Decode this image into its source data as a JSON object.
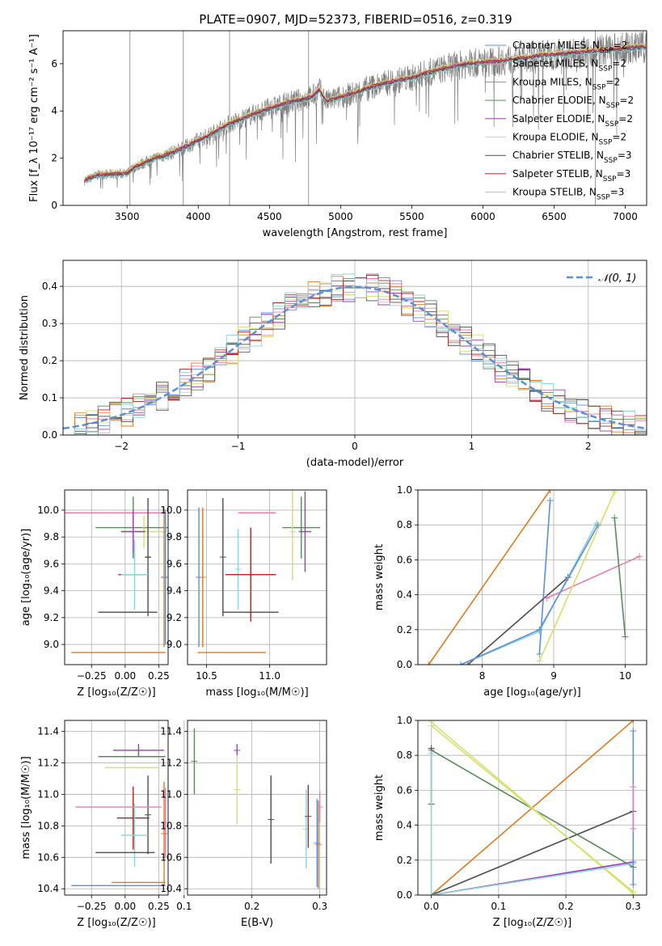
{
  "figure_title": "PLATE=0907, MJD=52373, FIBERID=0516, z=0.319",
  "colors": {
    "chabrier_miles": "#5b8fd9",
    "salpeter_miles": "#e97fa8",
    "kroupa_miles": "#e07a1f",
    "chabrier_elodie": "#5a8a5a",
    "salpeter_elodie": "#9a3fb8",
    "kroupa_elodie": "#d6e06a",
    "chabrier_stelib": "#4d4d4d",
    "salpeter_stelib": "#b22222",
    "kroupa_stelib": "#8dd3da",
    "data_gray": "#808080",
    "normal_curve": "#5b8fd9",
    "grid": "#b0b0b0"
  },
  "chart_data": [
    {
      "id": "spectrum",
      "type": "line",
      "title": "PLATE=0907, MJD=52373, FIBERID=0516, z=0.319",
      "xlabel": "wavelength [Angstrom, rest frame]",
      "ylabel": "Flux [f_λ 10⁻¹⁷ erg cm⁻² s⁻¹ A⁻¹]",
      "xlim": [
        3050,
        7150
      ],
      "ylim": [
        0,
        7.4
      ],
      "xticks": [
        3500,
        4000,
        4500,
        5000,
        5500,
        6000,
        6500,
        7000
      ],
      "yticks": [
        0,
        2,
        4,
        6
      ],
      "grid": false,
      "legend_position": "top-right",
      "continuum_x": [
        3200,
        3300,
        3500,
        3550,
        3600,
        3700,
        3800,
        3900,
        4000,
        4100,
        4200,
        4300,
        4400,
        4500,
        4600,
        4700,
        4800,
        4850,
        4900,
        5000,
        5100,
        5200,
        5300,
        5400,
        5500,
        5600,
        5700,
        5800,
        5900,
        6000,
        6100,
        6200,
        6300,
        6400,
        6500,
        6600,
        6700,
        6800,
        6900,
        7000,
        7100
      ],
      "continuum_y": [
        1.05,
        1.3,
        1.35,
        1.6,
        1.75,
        2.0,
        2.2,
        2.45,
        2.75,
        3.05,
        3.4,
        3.65,
        3.9,
        4.1,
        4.3,
        4.45,
        4.6,
        4.9,
        4.4,
        4.6,
        4.75,
        5.0,
        5.15,
        5.3,
        5.4,
        5.6,
        5.75,
        5.9,
        6.0,
        6.05,
        6.1,
        6.2,
        6.25,
        6.35,
        6.4,
        6.45,
        6.5,
        6.55,
        6.6,
        6.65,
        6.7
      ],
      "series": [
        {
          "name": "Chabrier MILES, N_SSP=2",
          "color_key": "chabrier_miles",
          "offset": 0.05
        },
        {
          "name": "Salpeter MILES, N_SSP=2",
          "color_key": "salpeter_miles",
          "offset": 0.08
        },
        {
          "name": "Kroupa MILES, N_SSP=2",
          "color_key": "kroupa_miles",
          "offset": 0.02
        },
        {
          "name": "Chabrier ELODIE, N_SSP=2",
          "color_key": "chabrier_elodie",
          "offset": -0.06
        },
        {
          "name": "Salpeter ELODIE, N_SSP=2",
          "color_key": "salpeter_elodie",
          "offset": 0.0
        },
        {
          "name": "Kroupa ELODIE, N_SSP=2",
          "color_key": "kroupa_elodie",
          "offset": 0.12
        },
        {
          "name": "Chabrier STELIB, N_SSP=3",
          "color_key": "chabrier_stelib",
          "offset": -0.04
        },
        {
          "name": "Salpeter STELIB, N_SSP=3",
          "color_key": "salpeter_stelib",
          "offset": 0.03
        },
        {
          "name": "Kroupa STELIB, N_SSP=3",
          "color_key": "kroupa_stelib",
          "offset": -0.1
        }
      ]
    },
    {
      "id": "residuals",
      "type": "line",
      "xlabel": "(data-model)/error",
      "ylabel": "Normed distribution",
      "xlim": [
        -2.5,
        2.5
      ],
      "ylim": [
        0,
        0.47
      ],
      "xticks": [
        -2,
        -1,
        0,
        1,
        2
      ],
      "yticks": [
        0.0,
        0.1,
        0.2,
        0.3,
        0.4
      ],
      "grid": true,
      "legend_position": "top-right",
      "legend_label": "𝒩(0, 1)",
      "bin_width": 0.1,
      "normal_sigma": 1.0
    },
    {
      "id": "age_vs_Z",
      "type": "scatter",
      "xlabel": "Z [log₁₀(Z/Z☉)]",
      "ylabel": "age  [log₁₀(age/yr)]",
      "xlim": [
        -0.45,
        0.32
      ],
      "ylim": [
        8.85,
        10.15
      ],
      "xticks": [
        -0.25,
        0.0,
        0.25
      ],
      "yticks": [
        9.0,
        9.2,
        9.4,
        9.6,
        9.8,
        10.0
      ],
      "points": [
        {
          "color_key": "salpeter_miles",
          "x": -0.08,
          "xerr": 0.38,
          "y": 9.98,
          "yerr": 0.0
        },
        {
          "color_key": "chabrier_elodie",
          "x": 0.06,
          "xerr": 0.28,
          "y": 9.87,
          "yerr": 0.23
        },
        {
          "color_key": "kroupa_elodie",
          "x": 0.14,
          "xerr": 0.17,
          "y": 9.84,
          "yerr": 0.12
        },
        {
          "color_key": "salpeter_elodie",
          "x": 0.06,
          "xerr": 0.09,
          "y": 9.84,
          "yerr": 0.16
        },
        {
          "color_key": "chabrier_stelib",
          "x": 0.17,
          "xerr": 0.02,
          "y": 9.65,
          "yerr": 0.44
        },
        {
          "color_key": "kroupa_miles",
          "x": 0.29,
          "xerr": 0.02,
          "y": 9.5,
          "yerr": 0.52
        },
        {
          "color_key": "salpeter_stelib",
          "x": 0.05,
          "xerr": 0.1,
          "y": 9.52,
          "yerr": 0.0
        },
        {
          "color_key": "kroupa_stelib",
          "x": 0.07,
          "xerr": 0.1,
          "y": 9.52,
          "yerr": 0.26
        },
        {
          "color_key": "chabrier_stelib",
          "x": 0.02,
          "xerr": 0.22,
          "y": 9.24,
          "yerr": 0.0
        },
        {
          "color_key": "kroupa_miles",
          "x": -0.05,
          "xerr": 0.35,
          "y": 8.94,
          "yerr": 0.0
        },
        {
          "color_key": "chabrier_miles",
          "x": 0.3,
          "xerr": 0.0,
          "y": 9.5,
          "yerr": 0.5
        }
      ]
    },
    {
      "id": "age_vs_mass",
      "type": "scatter",
      "xlabel": "mass [log₁₀(M/M☉)]",
      "ylabel": "",
      "xlim": [
        10.35,
        11.45
      ],
      "ylim": [
        8.85,
        10.15
      ],
      "xticks": [
        10.5,
        11.0
      ],
      "yticks": [
        9.0,
        9.2,
        9.4,
        9.6,
        9.8,
        10.0
      ],
      "points": [
        {
          "color_key": "salpeter_miles",
          "x": 10.9,
          "xerr": 0.15,
          "y": 9.98,
          "yerr": 0.0
        },
        {
          "color_key": "chabrier_elodie",
          "x": 11.25,
          "xerr": 0.15,
          "y": 9.87,
          "yerr": 0.23
        },
        {
          "color_key": "kroupa_elodie",
          "x": 11.18,
          "xerr": 0.0,
          "y": 9.84,
          "yerr": 0.36
        },
        {
          "color_key": "salpeter_elodie",
          "x": 11.28,
          "xerr": 0.05,
          "y": 9.84,
          "yerr": 0.3
        },
        {
          "color_key": "chabrier_stelib",
          "x": 10.63,
          "xerr": 0.0,
          "y": 9.65,
          "yerr": 0.44
        },
        {
          "color_key": "kroupa_stelib",
          "x": 10.75,
          "xerr": 0.0,
          "y": 9.56,
          "yerr": 0.3
        },
        {
          "color_key": "salpeter_stelib",
          "x": 10.85,
          "xerr": 0.2,
          "y": 9.52,
          "yerr": 0.35
        },
        {
          "color_key": "kroupa_miles",
          "x": 10.47,
          "xerr": 0.0,
          "y": 9.5,
          "yerr": 0.52
        },
        {
          "color_key": "chabrier_miles",
          "x": 10.44,
          "xerr": 0.0,
          "y": 9.5,
          "yerr": 0.52
        },
        {
          "color_key": "chabrier_stelib",
          "x": 10.85,
          "xerr": 0.22,
          "y": 9.24,
          "yerr": 0.0
        },
        {
          "color_key": "kroupa_miles",
          "x": 10.7,
          "xerr": 0.27,
          "y": 8.94,
          "yerr": 0.0
        }
      ]
    },
    {
      "id": "mass_weight_vs_age",
      "type": "line",
      "xlabel": "age  [log₁₀(age/yr)]",
      "ylabel": "mass weight",
      "xlim": [
        7.1,
        10.3
      ],
      "ylim": [
        0,
        1.0
      ],
      "xticks": [
        8,
        9,
        10
      ],
      "yticks": [
        0.0,
        0.2,
        0.4,
        0.6,
        0.8,
        1.0
      ],
      "grid": true,
      "series": [
        {
          "color_key": "kroupa_miles",
          "x": [
            7.25,
            8.95
          ],
          "y": [
            0.0,
            1.0
          ]
        },
        {
          "color_key": "chabrier_miles",
          "x": [
            8.8,
            8.95
          ],
          "y": [
            0.06,
            0.94
          ]
        },
        {
          "color_key": "chabrier_stelib",
          "x": [
            7.8,
            9.2
          ],
          "y": [
            0.0,
            0.5
          ]
        },
        {
          "color_key": "salpeter_miles",
          "x": [
            8.9,
            10.2
          ],
          "y": [
            0.38,
            0.62
          ]
        },
        {
          "color_key": "kroupa_elodie",
          "x": [
            8.8,
            9.85
          ],
          "y": [
            0.02,
            0.99
          ]
        },
        {
          "color_key": "chabrier_elodie",
          "x": [
            9.85,
            10.0
          ],
          "y": [
            0.84,
            0.16
          ]
        },
        {
          "color_key": "kroupa_stelib",
          "x": [
            7.7,
            8.8,
            9.6
          ],
          "y": [
            0.0,
            0.19,
            0.81
          ]
        },
        {
          "color_key": "chabrier_miles",
          "x": [
            7.7,
            8.8,
            9.62
          ],
          "y": [
            0.0,
            0.2,
            0.8
          ]
        }
      ]
    },
    {
      "id": "mass_vs_Z",
      "type": "scatter",
      "xlabel": "Z [log₁₀(Z/Z☉)]",
      "ylabel": "mass [log₁₀(M/M☉)]",
      "xlim": [
        -0.45,
        0.32
      ],
      "ylim": [
        10.36,
        11.47
      ],
      "xticks": [
        -0.25,
        0.0,
        0.25
      ],
      "yticks": [
        10.4,
        10.6,
        10.8,
        11.0,
        11.2,
        11.4
      ],
      "points": [
        {
          "color_key": "salpeter_elodie",
          "x": 0.1,
          "xerr": 0.19,
          "y": 11.28,
          "yerr": 0.04
        },
        {
          "color_key": "chabrier_elodie",
          "x": 0.05,
          "xerr": 0.25,
          "y": 11.24,
          "yerr": 0.0
        },
        {
          "color_key": "kroupa_elodie",
          "x": 0.05,
          "xerr": 0.2,
          "y": 11.17,
          "yerr": 0.0
        },
        {
          "color_key": "chabrier_stelib",
          "x": 0.17,
          "xerr": 0.0,
          "y": 10.87,
          "yerr": 0.25
        },
        {
          "color_key": "salpeter_stelib",
          "x": 0.06,
          "xerr": 0.12,
          "y": 10.85,
          "yerr": 0.2
        },
        {
          "color_key": "salpeter_miles",
          "x": -0.05,
          "xerr": 0.32,
          "y": 10.92,
          "yerr": 0.0
        },
        {
          "color_key": "kroupa_stelib",
          "x": 0.07,
          "xerr": 0.1,
          "y": 10.74,
          "yerr": 0.2
        },
        {
          "color_key": "chabrier_stelib",
          "x": 0.0,
          "xerr": 0.22,
          "y": 10.63,
          "yerr": 0.0
        },
        {
          "color_key": "kroupa_miles",
          "x": 0.1,
          "xerr": 0.2,
          "y": 10.44,
          "yerr": 0.0
        },
        {
          "color_key": "chabrier_miles",
          "x": -0.05,
          "xerr": 0.35,
          "y": 10.42,
          "yerr": 0.0
        },
        {
          "color_key": "salpeter_miles",
          "x": 0.3,
          "xerr": 0.0,
          "y": 10.82,
          "yerr": 0.22
        },
        {
          "color_key": "kroupa_miles",
          "x": 0.29,
          "xerr": 0.0,
          "y": 10.75,
          "yerr": 0.33
        }
      ]
    },
    {
      "id": "mass_vs_EBV",
      "type": "scatter",
      "xlabel": "E(B-V)",
      "ylabel": "",
      "xlim": [
        0.105,
        0.31
      ],
      "ylim": [
        10.36,
        11.47
      ],
      "xticks": [
        0.1,
        0.2,
        0.3
      ],
      "yticks": [
        10.4,
        10.6,
        10.8,
        11.0,
        11.2,
        11.4
      ],
      "points": [
        {
          "color_key": "chabrier_elodie",
          "x": 0.115,
          "xerr": 0.0,
          "y": 11.21,
          "yerr": 0.21
        },
        {
          "color_key": "salpeter_elodie",
          "x": 0.178,
          "xerr": 0.0,
          "y": 11.28,
          "yerr": 0.04
        },
        {
          "color_key": "kroupa_elodie",
          "x": 0.178,
          "xerr": 0.0,
          "y": 11.03,
          "yerr": 0.22
        },
        {
          "color_key": "chabrier_stelib",
          "x": 0.228,
          "xerr": 0.0,
          "y": 10.84,
          "yerr": 0.28
        },
        {
          "color_key": "kroupa_stelib",
          "x": 0.28,
          "xerr": 0.0,
          "y": 10.78,
          "yerr": 0.25
        },
        {
          "color_key": "salpeter_stelib",
          "x": 0.283,
          "xerr": 0.0,
          "y": 10.86,
          "yerr": 0.2
        },
        {
          "color_key": "kroupa_miles",
          "x": 0.298,
          "xerr": 0.0,
          "y": 10.68,
          "yerr": 0.28
        },
        {
          "color_key": "chabrier_miles",
          "x": 0.296,
          "xerr": 0.0,
          "y": 10.69,
          "yerr": 0.28
        },
        {
          "color_key": "salpeter_miles",
          "x": 0.3,
          "xerr": 0.0,
          "y": 10.92,
          "yerr": 0.1
        }
      ]
    },
    {
      "id": "mass_weight_vs_Z",
      "type": "line",
      "xlabel": "Z [log₁₀(Z/Z☉)]",
      "ylabel": "mass weight",
      "xlim": [
        -0.02,
        0.32
      ],
      "ylim": [
        0,
        1.0
      ],
      "xticks": [
        0.0,
        0.1,
        0.2,
        0.3
      ],
      "yticks": [
        0.0,
        0.2,
        0.4,
        0.6,
        0.8,
        1.0
      ],
      "grid": true,
      "series": [
        {
          "color_key": "kroupa_miles",
          "x": [
            0.0,
            0.3
          ],
          "y": [
            0.0,
            1.0
          ]
        },
        {
          "color_key": "chabrier_stelib",
          "x": [
            0.0,
            0.3
          ],
          "y": [
            0.0,
            0.48
          ]
        },
        {
          "color_key": "chabrier_elodie",
          "x": [
            0.0,
            0.3
          ],
          "y": [
            0.83,
            0.16
          ]
        },
        {
          "color_key": "kroupa_elodie",
          "x": [
            0.0,
            0.3
          ],
          "y": [
            0.99,
            0.01
          ]
        },
        {
          "color_key": "kroupa_elodie",
          "x": [
            0.0,
            0.3
          ],
          "y": [
            0.97,
            0.02
          ]
        },
        {
          "color_key": "salpeter_elodie",
          "x": [
            0.0,
            0.3
          ],
          "y": [
            0.0,
            0.19
          ]
        },
        {
          "color_key": "kroupa_stelib",
          "x": [
            0.0,
            0.3
          ],
          "y": [
            0.0,
            0.18
          ]
        },
        {
          "color_key": "chabrier_miles",
          "x": [
            0.3,
            0.3
          ],
          "y": [
            0.06,
            0.94
          ]
        },
        {
          "color_key": "salpeter_miles",
          "x": [
            0.3,
            0.3
          ],
          "y": [
            0.38,
            0.62
          ]
        },
        {
          "color_key": "chabrier_stelib",
          "x": [
            0.0,
            0.0
          ],
          "y": [
            0.52,
            0.84
          ]
        },
        {
          "color_key": "kroupa_stelib",
          "x": [
            0.0,
            0.0
          ],
          "y": [
            0.0,
            0.81
          ]
        }
      ]
    }
  ]
}
